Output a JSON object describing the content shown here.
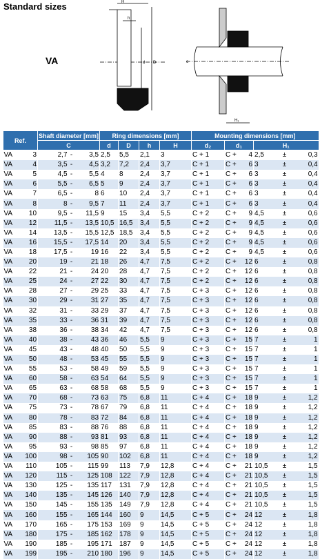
{
  "header": {
    "title": "Standard sizes",
    "model": "VA"
  },
  "diagram": {
    "left_labels": [
      "H",
      "h",
      "d",
      "D"
    ],
    "right_labels": [
      "c",
      "H₁"
    ]
  },
  "table": {
    "group_headers": [
      "Ref.",
      "Shaft diameter [mm]",
      "Ring dimensions [mm]",
      "Mounting dimensions [mm]"
    ],
    "sub_headers": [
      "C",
      "d",
      "D",
      "h",
      "H",
      "d₂",
      "d₁",
      "H₁"
    ],
    "separators": {
      "range": "-",
      "plus": "C +",
      "tol": "±"
    },
    "rows": [
      [
        "VA",
        "3",
        "2,7",
        "3,5",
        "2,5",
        "5,5",
        "2,1",
        "3",
        "1",
        "4",
        "2,5",
        "0,3"
      ],
      [
        "VA",
        "4",
        "3,5",
        "4,5",
        "3,2",
        "7,2",
        "2,4",
        "3,7",
        "1",
        "6",
        "3",
        "0,4"
      ],
      [
        "VA",
        "5",
        "4,5",
        "5,5",
        "4",
        "8",
        "2,4",
        "3,7",
        "1",
        "6",
        "3",
        "0,4"
      ],
      [
        "VA",
        "6",
        "5,5",
        "6,5",
        "5",
        "9",
        "2,4",
        "3,7",
        "1",
        "6",
        "3",
        "0,4"
      ],
      [
        "VA",
        "7",
        "6,5",
        "8",
        "6",
        "10",
        "2,4",
        "3,7",
        "1",
        "6",
        "3",
        "0,4"
      ],
      [
        "VA",
        "8",
        "8",
        "9,5",
        "7",
        "11",
        "2,4",
        "3,7",
        "1",
        "6",
        "3",
        "0,4"
      ],
      [
        "VA",
        "10",
        "9,5",
        "11,5",
        "9",
        "15",
        "3,4",
        "5,5",
        "2",
        "9",
        "4,5",
        "0,6"
      ],
      [
        "VA",
        "12",
        "11,5",
        "13,5",
        "10,5",
        "16,5",
        "3,4",
        "5,5",
        "2",
        "9",
        "4,5",
        "0,6"
      ],
      [
        "VA",
        "14",
        "13,5",
        "15,5",
        "12,5",
        "18,5",
        "3,4",
        "5,5",
        "2",
        "9",
        "4,5",
        "0,6"
      ],
      [
        "VA",
        "16",
        "15,5",
        "17,5",
        "14",
        "20",
        "3,4",
        "5,5",
        "2",
        "9",
        "4,5",
        "0,6"
      ],
      [
        "VA",
        "18",
        "17,5",
        "19",
        "16",
        "22",
        "3,4",
        "5,5",
        "2",
        "9",
        "4,5",
        "0,6"
      ],
      [
        "VA",
        "20",
        "19",
        "21",
        "18",
        "26",
        "4,7",
        "7,5",
        "2",
        "12",
        "6",
        "0,8"
      ],
      [
        "VA",
        "22",
        "21",
        "24",
        "20",
        "28",
        "4,7",
        "7,5",
        "2",
        "12",
        "6",
        "0,8"
      ],
      [
        "VA",
        "25",
        "24",
        "27",
        "22",
        "30",
        "4,7",
        "7,5",
        "2",
        "12",
        "6",
        "0,8"
      ],
      [
        "VA",
        "28",
        "27",
        "29",
        "25",
        "33",
        "4,7",
        "7,5",
        "3",
        "12",
        "6",
        "0,8"
      ],
      [
        "VA",
        "30",
        "29",
        "31",
        "27",
        "35",
        "4,7",
        "7,5",
        "3",
        "12",
        "6",
        "0,8"
      ],
      [
        "VA",
        "32",
        "31",
        "33",
        "29",
        "37",
        "4,7",
        "7,5",
        "3",
        "12",
        "6",
        "0,8"
      ],
      [
        "VA",
        "35",
        "33",
        "36",
        "31",
        "39",
        "4,7",
        "7,5",
        "3",
        "12",
        "6",
        "0,8"
      ],
      [
        "VA",
        "38",
        "36",
        "38",
        "34",
        "42",
        "4,7",
        "7,5",
        "3",
        "12",
        "6",
        "0,8"
      ],
      [
        "VA",
        "40",
        "38",
        "43",
        "36",
        "46",
        "5,5",
        "9",
        "3",
        "15",
        "7",
        "1"
      ],
      [
        "VA",
        "45",
        "43",
        "48",
        "40",
        "50",
        "5,5",
        "9",
        "3",
        "15",
        "7",
        "1"
      ],
      [
        "VA",
        "50",
        "48",
        "53",
        "45",
        "55",
        "5,5",
        "9",
        "3",
        "15",
        "7",
        "1"
      ],
      [
        "VA",
        "55",
        "53",
        "58",
        "49",
        "59",
        "5,5",
        "9",
        "3",
        "15",
        "7",
        "1"
      ],
      [
        "VA",
        "60",
        "58",
        "63",
        "54",
        "64",
        "5,5",
        "9",
        "3",
        "15",
        "7",
        "1"
      ],
      [
        "VA",
        "65",
        "63",
        "68",
        "58",
        "68",
        "5,5",
        "9",
        "3",
        "15",
        "7",
        "1"
      ],
      [
        "VA",
        "70",
        "68",
        "73",
        "63",
        "75",
        "6,8",
        "11",
        "4",
        "18",
        "9",
        "1,2"
      ],
      [
        "VA",
        "75",
        "73",
        "78",
        "67",
        "79",
        "6,8",
        "11",
        "4",
        "18",
        "9",
        "1,2"
      ],
      [
        "VA",
        "80",
        "78",
        "83",
        "72",
        "84",
        "6,8",
        "11",
        "4",
        "18",
        "9",
        "1,2"
      ],
      [
        "VA",
        "85",
        "83",
        "88",
        "76",
        "88",
        "6,8",
        "11",
        "4",
        "18",
        "9",
        "1,2"
      ],
      [
        "VA",
        "90",
        "88",
        "93",
        "81",
        "93",
        "6,8",
        "11",
        "4",
        "18",
        "9",
        "1,2"
      ],
      [
        "VA",
        "95",
        "93",
        "98",
        "85",
        "97",
        "6,8",
        "11",
        "4",
        "18",
        "9",
        "1,2"
      ],
      [
        "VA",
        "100",
        "98",
        "105",
        "90",
        "102",
        "6,8",
        "11",
        "4",
        "18",
        "9",
        "1,2"
      ],
      [
        "VA",
        "110",
        "105",
        "115",
        "99",
        "113",
        "7,9",
        "12,8",
        "4",
        "21",
        "10,5",
        "1,5"
      ],
      [
        "VA",
        "120",
        "115",
        "125",
        "108",
        "122",
        "7,9",
        "12,8",
        "4",
        "21",
        "10,5",
        "1,5"
      ],
      [
        "VA",
        "130",
        "125",
        "135",
        "117",
        "131",
        "7,9",
        "12,8",
        "4",
        "21",
        "10,5",
        "1,5"
      ],
      [
        "VA",
        "140",
        "135",
        "145",
        "126",
        "140",
        "7,9",
        "12,8",
        "4",
        "21",
        "10,5",
        "1,5"
      ],
      [
        "VA",
        "150",
        "145",
        "155",
        "135",
        "149",
        "7,9",
        "12,8",
        "4",
        "21",
        "10,5",
        "1,5"
      ],
      [
        "VA",
        "160",
        "155",
        "165",
        "144",
        "160",
        "9",
        "14,5",
        "5",
        "24",
        "12",
        "1,8"
      ],
      [
        "VA",
        "170",
        "165",
        "175",
        "153",
        "169",
        "9",
        "14,5",
        "5",
        "24",
        "12",
        "1,8"
      ],
      [
        "VA",
        "180",
        "175",
        "185",
        "162",
        "178",
        "9",
        "14,5",
        "5",
        "24",
        "12",
        "1,8"
      ],
      [
        "VA",
        "190",
        "185",
        "195",
        "171",
        "187",
        "9",
        "14,5",
        "5",
        "24",
        "12",
        "1,8"
      ],
      [
        "VA",
        "199",
        "195",
        "210",
        "180",
        "196",
        "9",
        "14,5",
        "5",
        "24",
        "12",
        "1,8"
      ]
    ]
  }
}
